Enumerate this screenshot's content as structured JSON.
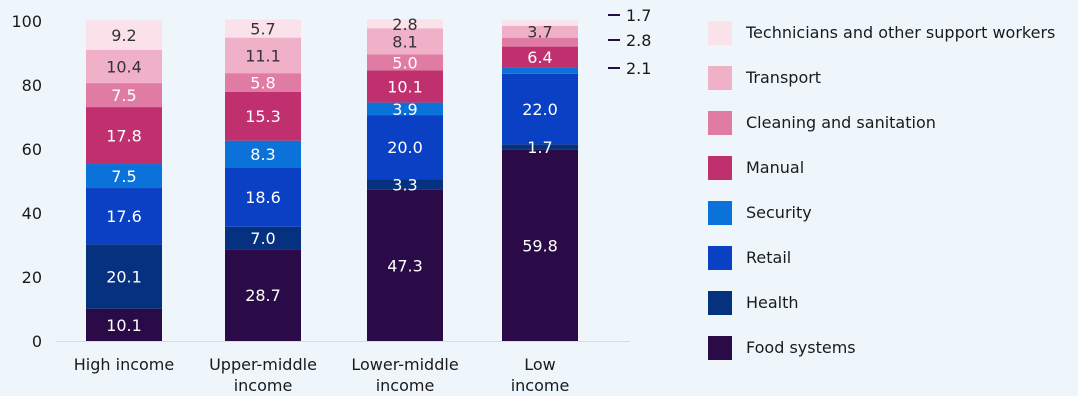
{
  "chart_data": {
    "type": "bar",
    "stacked": true,
    "categories": [
      "High income",
      "Upper-middle income",
      "Lower-middle income",
      "Low income"
    ],
    "category_lines": [
      [
        "High income"
      ],
      [
        "Upper-middle",
        "income"
      ],
      [
        "Lower-middle",
        "income"
      ],
      [
        "Low",
        "income"
      ]
    ],
    "ylim": [
      0,
      100
    ],
    "yticks": [
      0,
      20,
      40,
      60,
      80,
      100
    ],
    "grid": false,
    "legend_position": "right",
    "series": [
      {
        "name": "Food systems",
        "color": "#2b0b47",
        "label_color": "#ffffff",
        "values": [
          10.1,
          28.7,
          47.3,
          59.8
        ]
      },
      {
        "name": "Health",
        "color": "#05317f",
        "label_color": "#ffffff",
        "values": [
          20.1,
          7.0,
          3.3,
          1.7
        ]
      },
      {
        "name": "Retail",
        "color": "#0a40c4",
        "label_color": "#ffffff",
        "values": [
          17.6,
          18.6,
          20.0,
          22.0
        ]
      },
      {
        "name": "Security",
        "color": "#0a72d8",
        "label_color": "#ffffff",
        "values": [
          7.5,
          8.3,
          3.9,
          2.1
        ]
      },
      {
        "name": "Manual",
        "color": "#c0306e",
        "label_color": "#ffffff",
        "values": [
          17.8,
          15.3,
          10.1,
          6.4
        ]
      },
      {
        "name": "Cleaning and sanitation",
        "color": "#e07ca3",
        "label_color": "#ffffff",
        "values": [
          7.5,
          5.8,
          5.0,
          2.8
        ]
      },
      {
        "name": "Transport",
        "color": "#f0b0c8",
        "label_color": "#333333",
        "values": [
          10.4,
          11.1,
          8.1,
          3.7
        ]
      },
      {
        "name": "Technicians and other support workers",
        "color": "#fbe1ea",
        "label_color": "#333333",
        "values": [
          9.2,
          5.7,
          2.8,
          1.7
        ]
      }
    ],
    "outside_labels": [
      {
        "category_index": 3,
        "series_index": 7,
        "text": "1.7"
      },
      {
        "category_index": 3,
        "series_index": 5,
        "text": "2.8"
      },
      {
        "category_index": 3,
        "series_index": 3,
        "text": "2.1"
      }
    ],
    "leader_color": "#2b0b47"
  }
}
